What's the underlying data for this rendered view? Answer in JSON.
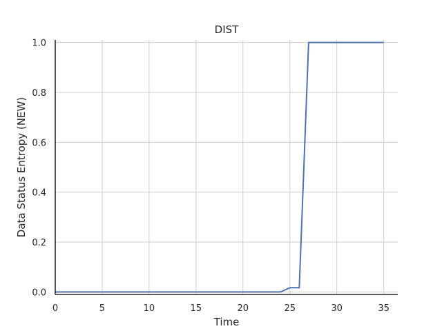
{
  "chart_data": {
    "type": "line",
    "title": "DIST",
    "xlabel": "Time",
    "ylabel": "Data Status Entropy (NEW)",
    "xlim": [
      0,
      36.5
    ],
    "ylim": [
      -0.01,
      1.01
    ],
    "xticks": [
      0,
      5,
      10,
      15,
      20,
      25,
      30,
      35
    ],
    "xtick_labels": [
      "0",
      "5",
      "10",
      "15",
      "20",
      "25",
      "30",
      "35"
    ],
    "yticks": [
      0.0,
      0.2,
      0.4,
      0.6,
      0.8,
      1.0
    ],
    "ytick_labels": [
      "0.0",
      "0.2",
      "0.4",
      "0.6",
      "0.8",
      "1.0"
    ],
    "grid": true,
    "legend": "none",
    "series": [
      {
        "color": "#4c72b0",
        "x": [
          0,
          1,
          2,
          3,
          4,
          5,
          6,
          7,
          8,
          9,
          10,
          11,
          12,
          13,
          14,
          15,
          16,
          17,
          18,
          19,
          20,
          21,
          22,
          23,
          24,
          25,
          26,
          27,
          28,
          29,
          30,
          31,
          32,
          33,
          34,
          35
        ],
        "y": [
          0,
          0,
          0,
          0,
          0,
          0,
          0,
          0,
          0,
          0,
          0,
          0,
          0,
          0,
          0,
          0,
          0,
          0,
          0,
          0,
          0,
          0,
          0,
          0,
          0,
          0.017,
          0.017,
          1,
          1,
          1,
          1,
          1,
          1,
          1,
          1,
          1
        ]
      }
    ]
  }
}
